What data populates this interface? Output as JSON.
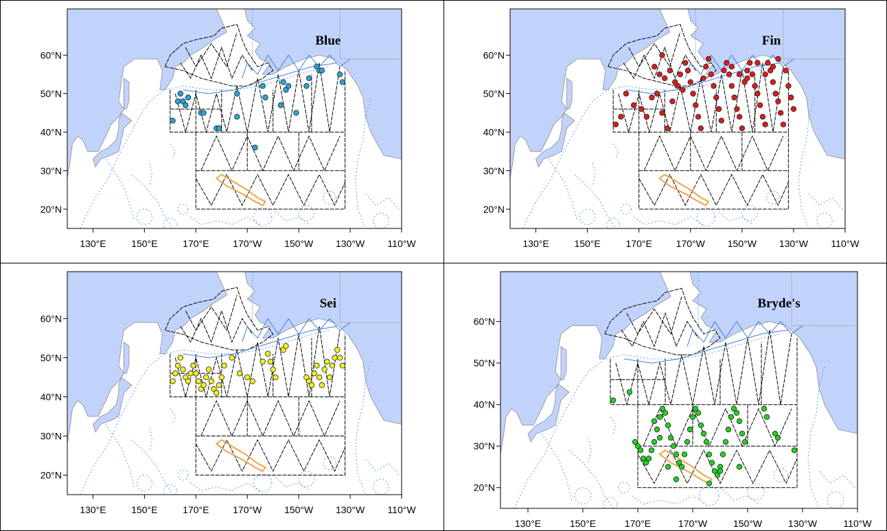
{
  "lat_labels": [
    "20°N",
    "30°N",
    "40°N",
    "50°N",
    "60°N"
  ],
  "lon_labels": [
    "130°E",
    "150°E",
    "170°E",
    "170°W",
    "150°W",
    "130°W",
    "110°W"
  ],
  "colors": {
    "ocean": "#ffffff",
    "land": "#c2d3fb",
    "land_edge": "#8a8a8a",
    "survey_black": "#000000",
    "survey_blue": "#3f7fd9",
    "contour": "#6aa4e6",
    "hawaii": "#f0a44b"
  },
  "panels": [
    {
      "species": "Blue",
      "marker_color": "#2aa3d6",
      "sightings": [
        [
          161,
          43
        ],
        [
          163,
          48
        ],
        [
          164,
          50
        ],
        [
          165,
          48
        ],
        [
          166,
          47
        ],
        [
          167,
          49
        ],
        [
          172,
          45
        ],
        [
          173,
          45
        ],
        [
          178,
          41
        ],
        [
          179,
          41
        ],
        [
          186,
          50
        ],
        [
          186,
          44
        ],
        [
          193,
          36
        ],
        [
          196,
          52
        ],
        [
          197,
          49
        ],
        [
          203,
          47
        ],
        [
          204,
          53
        ],
        [
          205,
          51
        ],
        [
          206,
          52
        ],
        [
          209,
          45
        ],
        [
          213,
          52
        ],
        [
          214,
          54
        ],
        [
          217,
          57
        ],
        [
          218,
          56
        ],
        [
          219,
          56
        ],
        [
          226,
          55
        ],
        [
          227,
          53
        ]
      ]
    },
    {
      "species": "Fin",
      "marker_color": "#d41e1e",
      "sightings": [
        [
          161,
          42
        ],
        [
          163,
          44
        ],
        [
          165,
          50
        ],
        [
          168,
          47
        ],
        [
          171,
          46
        ],
        [
          173,
          44
        ],
        [
          175,
          49
        ],
        [
          177,
          50
        ],
        [
          179,
          45
        ],
        [
          181,
          41
        ],
        [
          183,
          48
        ],
        [
          185,
          52
        ],
        [
          186,
          55
        ],
        [
          188,
          58
        ],
        [
          189,
          56
        ],
        [
          190,
          53
        ],
        [
          191,
          50
        ],
        [
          192,
          47
        ],
        [
          193,
          44
        ],
        [
          194,
          41
        ],
        [
          195,
          54
        ],
        [
          196,
          57
        ],
        [
          197,
          59
        ],
        [
          198,
          55
        ],
        [
          199,
          52
        ],
        [
          200,
          49
        ],
        [
          201,
          46
        ],
        [
          202,
          43
        ],
        [
          203,
          56
        ],
        [
          204,
          58
        ],
        [
          205,
          55
        ],
        [
          206,
          52
        ],
        [
          207,
          49
        ],
        [
          208,
          46
        ],
        [
          209,
          44
        ],
        [
          210,
          41
        ],
        [
          211,
          53
        ],
        [
          212,
          56
        ],
        [
          213,
          58
        ],
        [
          214,
          55
        ],
        [
          215,
          52
        ],
        [
          216,
          50
        ],
        [
          217,
          47
        ],
        [
          218,
          44
        ],
        [
          219,
          42
        ],
        [
          220,
          58
        ],
        [
          221,
          56
        ],
        [
          222,
          53
        ],
        [
          223,
          50
        ],
        [
          224,
          48
        ],
        [
          225,
          45
        ],
        [
          226,
          42
        ],
        [
          227,
          56
        ],
        [
          228,
          52
        ],
        [
          229,
          49
        ],
        [
          230,
          46
        ],
        [
          180,
          54
        ],
        [
          182,
          56
        ],
        [
          184,
          53
        ],
        [
          187,
          51
        ],
        [
          178,
          55
        ],
        [
          176,
          57
        ],
        [
          179,
          60
        ],
        [
          206,
          57
        ],
        [
          209,
          55
        ],
        [
          212,
          54
        ],
        [
          216,
          58
        ],
        [
          219,
          55
        ],
        [
          222,
          57
        ],
        [
          224,
          59
        ]
      ]
    },
    {
      "species": "Sei",
      "marker_color": "#f2ee22",
      "sightings": [
        [
          161,
          44
        ],
        [
          162,
          46
        ],
        [
          163,
          48
        ],
        [
          164,
          50
        ],
        [
          165,
          47
        ],
        [
          166,
          45
        ],
        [
          167,
          44
        ],
        [
          168,
          46
        ],
        [
          169,
          48
        ],
        [
          170,
          46
        ],
        [
          171,
          44
        ],
        [
          172,
          42
        ],
        [
          173,
          43
        ],
        [
          174,
          45
        ],
        [
          175,
          47
        ],
        [
          176,
          44
        ],
        [
          177,
          42
        ],
        [
          178,
          41
        ],
        [
          179,
          43
        ],
        [
          180,
          45
        ],
        [
          181,
          48
        ],
        [
          184,
          50
        ],
        [
          187,
          46
        ],
        [
          190,
          45
        ],
        [
          192,
          44
        ],
        [
          196,
          49
        ],
        [
          198,
          51
        ],
        [
          199,
          49
        ],
        [
          200,
          47
        ],
        [
          201,
          45
        ],
        [
          204,
          52
        ],
        [
          205,
          53
        ],
        [
          213,
          45
        ],
        [
          214,
          44
        ],
        [
          215,
          43
        ],
        [
          216,
          46
        ],
        [
          217,
          48
        ],
        [
          218,
          45
        ],
        [
          219,
          43
        ],
        [
          220,
          47
        ],
        [
          221,
          49
        ],
        [
          222,
          45
        ],
        [
          223,
          48
        ],
        [
          224,
          50
        ],
        [
          225,
          52
        ],
        [
          226,
          50
        ],
        [
          227,
          48
        ]
      ]
    },
    {
      "species": "Bryde's",
      "marker_color": "#22cf22",
      "sightings": [
        [
          161,
          41
        ],
        [
          167,
          43
        ],
        [
          169,
          31
        ],
        [
          170,
          30
        ],
        [
          171,
          29
        ],
        [
          172,
          27
        ],
        [
          173,
          26
        ],
        [
          174,
          27
        ],
        [
          175,
          29
        ],
        [
          176,
          31
        ],
        [
          177,
          34
        ],
        [
          178,
          37
        ],
        [
          179,
          39
        ],
        [
          180,
          38
        ],
        [
          181,
          35
        ],
        [
          182,
          32
        ],
        [
          183,
          30
        ],
        [
          184,
          28
        ],
        [
          185,
          26
        ],
        [
          186,
          25
        ],
        [
          187,
          28
        ],
        [
          188,
          31
        ],
        [
          189,
          34
        ],
        [
          190,
          37
        ],
        [
          191,
          39
        ],
        [
          192,
          38
        ],
        [
          193,
          35
        ],
        [
          194,
          33
        ],
        [
          195,
          31
        ],
        [
          196,
          28
        ],
        [
          197,
          26
        ],
        [
          198,
          24
        ],
        [
          199,
          23
        ],
        [
          200,
          25
        ],
        [
          201,
          28
        ],
        [
          202,
          31
        ],
        [
          203,
          34
        ],
        [
          204,
          37
        ],
        [
          205,
          39
        ],
        [
          206,
          38
        ],
        [
          207,
          36
        ],
        [
          208,
          33
        ],
        [
          209,
          31
        ],
        [
          216,
          39
        ],
        [
          217,
          37
        ],
        [
          220,
          33
        ],
        [
          221,
          32
        ],
        [
          227,
          29
        ],
        [
          176,
          36
        ],
        [
          178,
          32
        ],
        [
          181,
          25
        ],
        [
          184,
          22
        ],
        [
          196,
          21
        ],
        [
          200,
          24
        ],
        [
          207,
          25
        ]
      ]
    }
  ]
}
